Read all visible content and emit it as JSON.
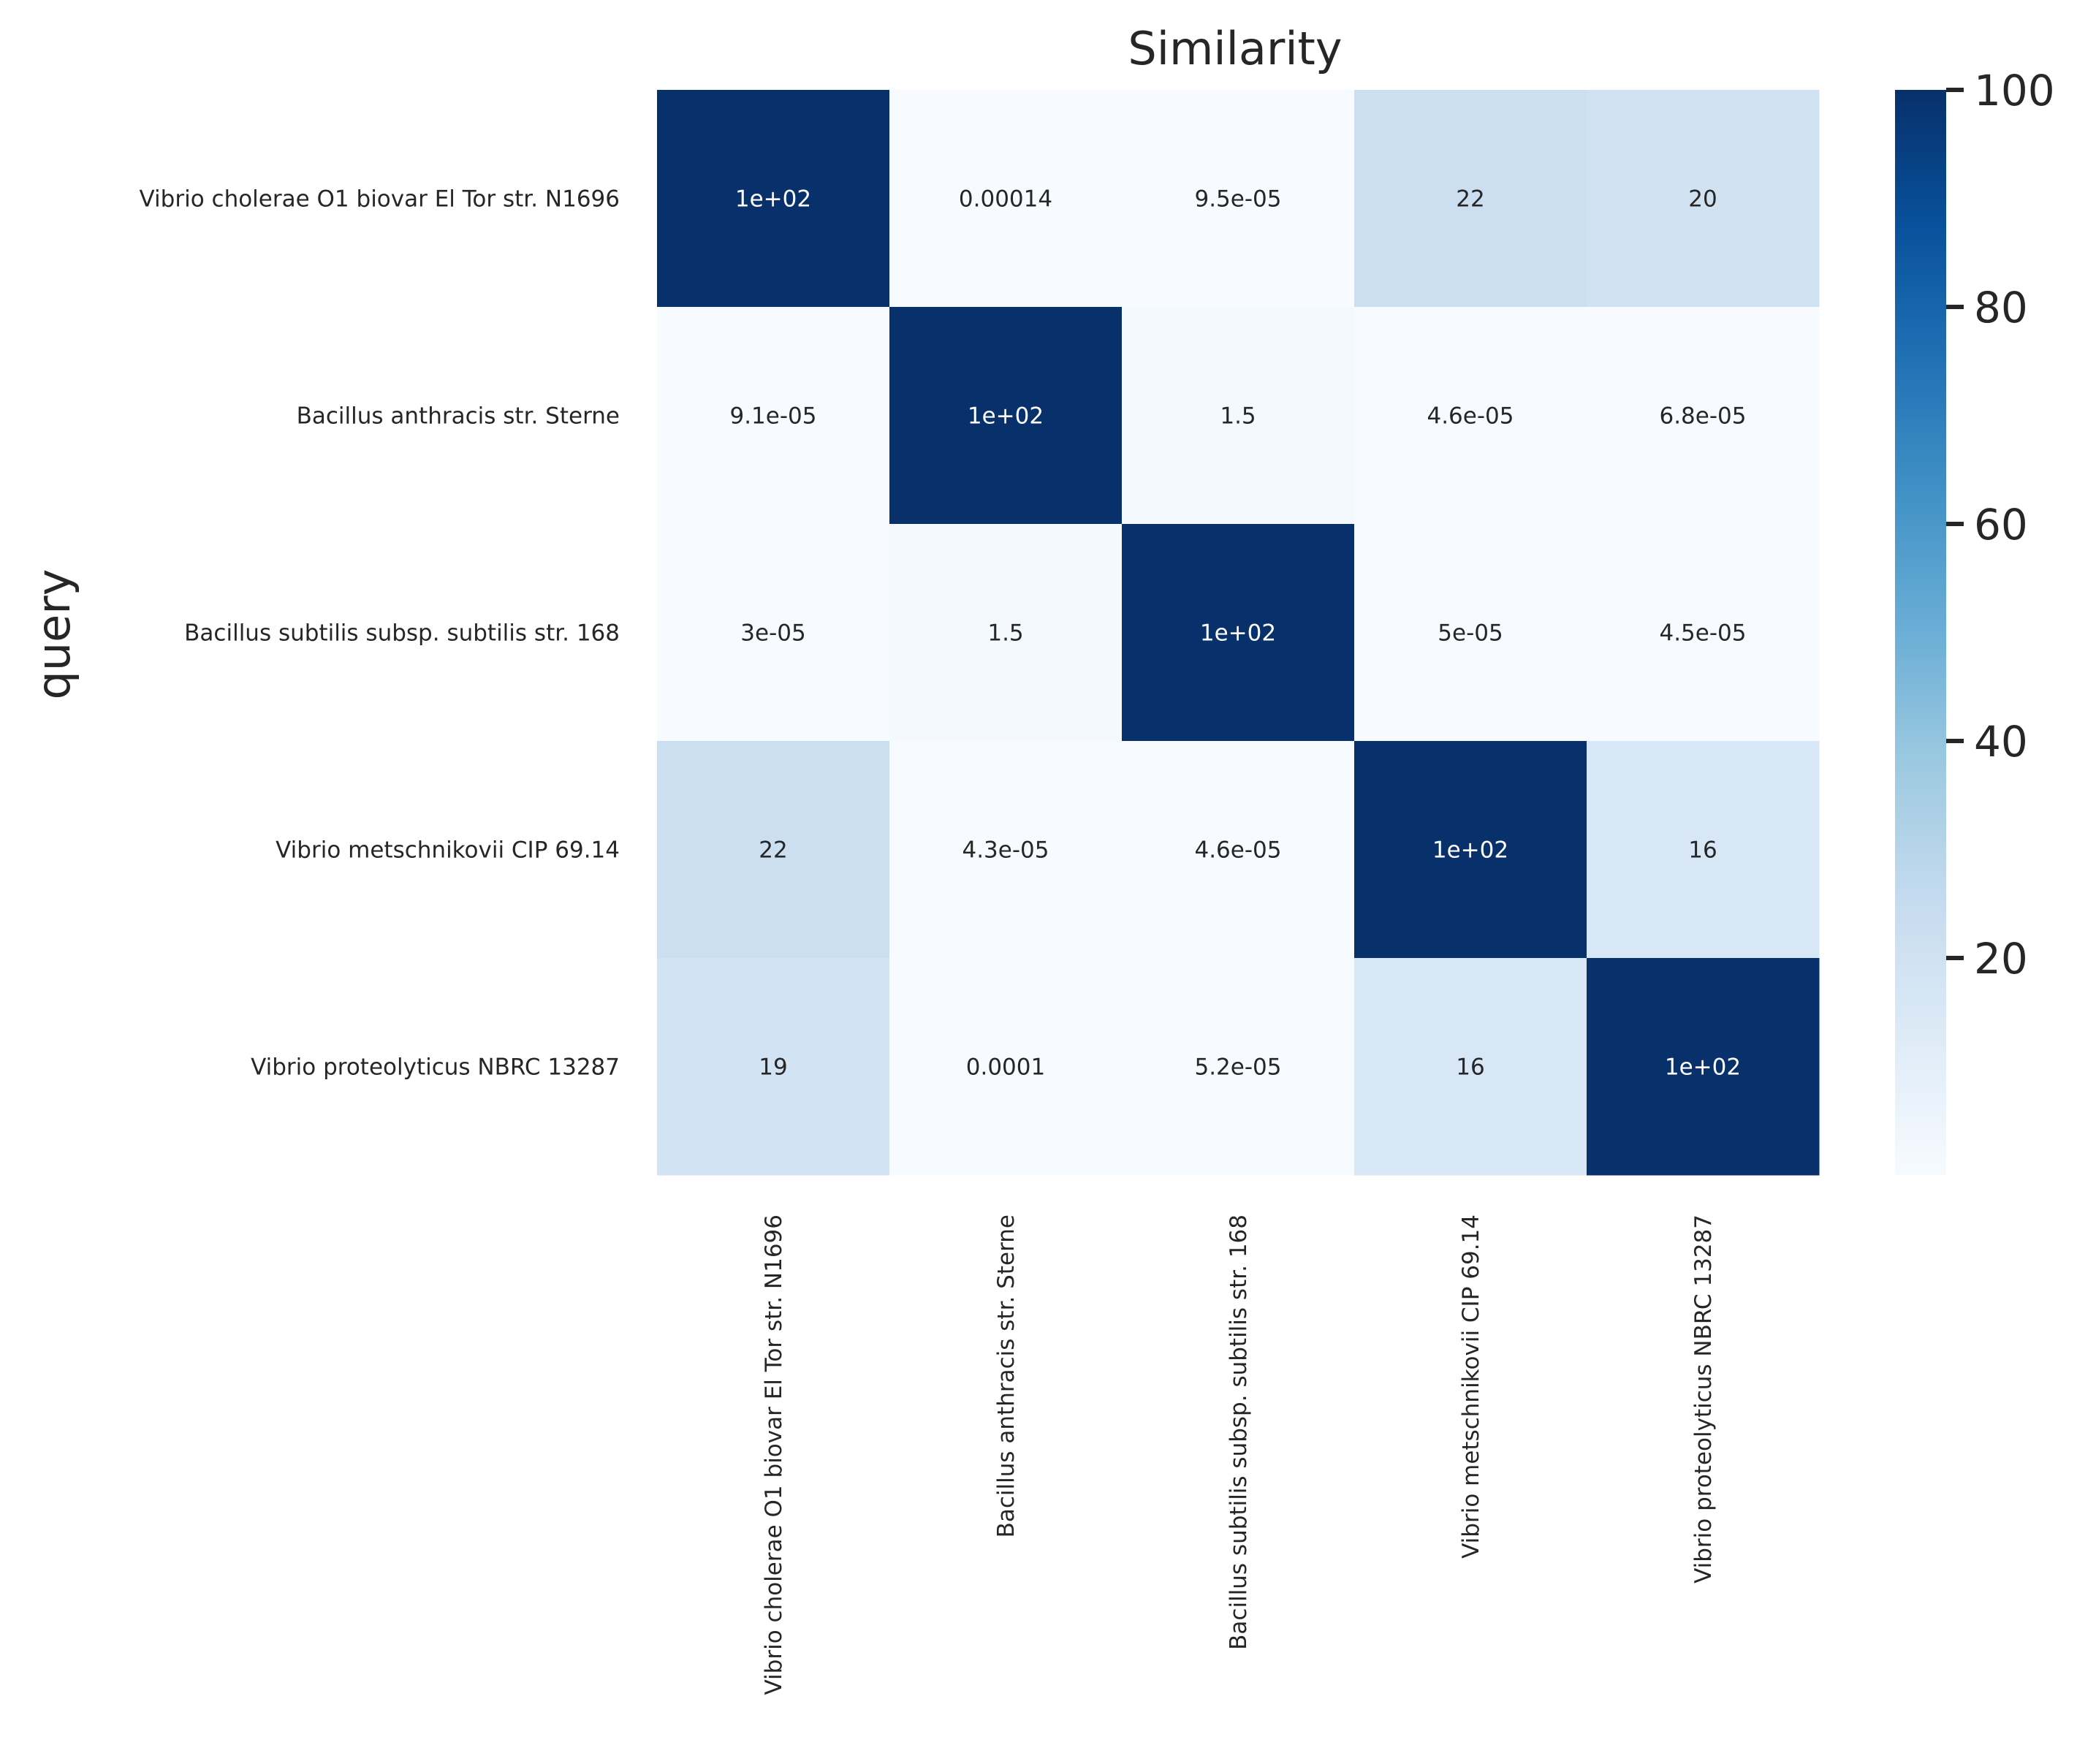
{
  "chart_data": {
    "type": "heatmap",
    "title": "Similarity",
    "ylabel": "query",
    "xlabel": "",
    "rows": [
      "Vibrio cholerae O1 biovar El Tor str. N1696",
      "Bacillus anthracis str. Sterne",
      "Bacillus subtilis subsp. subtilis str. 168",
      "Vibrio metschnikovii CIP 69.14",
      "Vibrio proteolyticus NBRC 13287"
    ],
    "columns": [
      "Vibrio cholerae O1 biovar El Tor str. N1696",
      "Bacillus anthracis str. Sterne",
      "Bacillus subtilis subsp. subtilis str. 168",
      "Vibrio metschnikovii CIP 69.14",
      "Vibrio proteolyticus NBRC 13287"
    ],
    "values": [
      [
        100,
        0.00014,
        9.5e-05,
        22,
        20
      ],
      [
        9.1e-05,
        100,
        1.5,
        4.6e-05,
        6.8e-05
      ],
      [
        3e-05,
        1.5,
        100,
        5e-05,
        4.5e-05
      ],
      [
        22,
        4.3e-05,
        4.6e-05,
        100,
        16
      ],
      [
        19,
        0.0001,
        5.2e-05,
        16,
        100
      ]
    ],
    "annotations": [
      [
        "1e+02",
        "0.00014",
        "9.5e-05",
        "22",
        "20"
      ],
      [
        "9.1e-05",
        "1e+02",
        "1.5",
        "4.6e-05",
        "6.8e-05"
      ],
      [
        "3e-05",
        "1.5",
        "1e+02",
        "5e-05",
        "4.5e-05"
      ],
      [
        "22",
        "4.3e-05",
        "4.6e-05",
        "1e+02",
        "16"
      ],
      [
        "19",
        "0.0001",
        "5.2e-05",
        "16",
        "1e+02"
      ]
    ],
    "colormap": "Blues",
    "colorbar": {
      "range": [
        0,
        100
      ],
      "ticks": [
        20,
        40,
        60,
        80,
        100
      ]
    },
    "colors": {
      "low": "#f7fbff",
      "high": "#08306b",
      "text_dark": "#262626",
      "text_light": "#ffffff"
    }
  }
}
